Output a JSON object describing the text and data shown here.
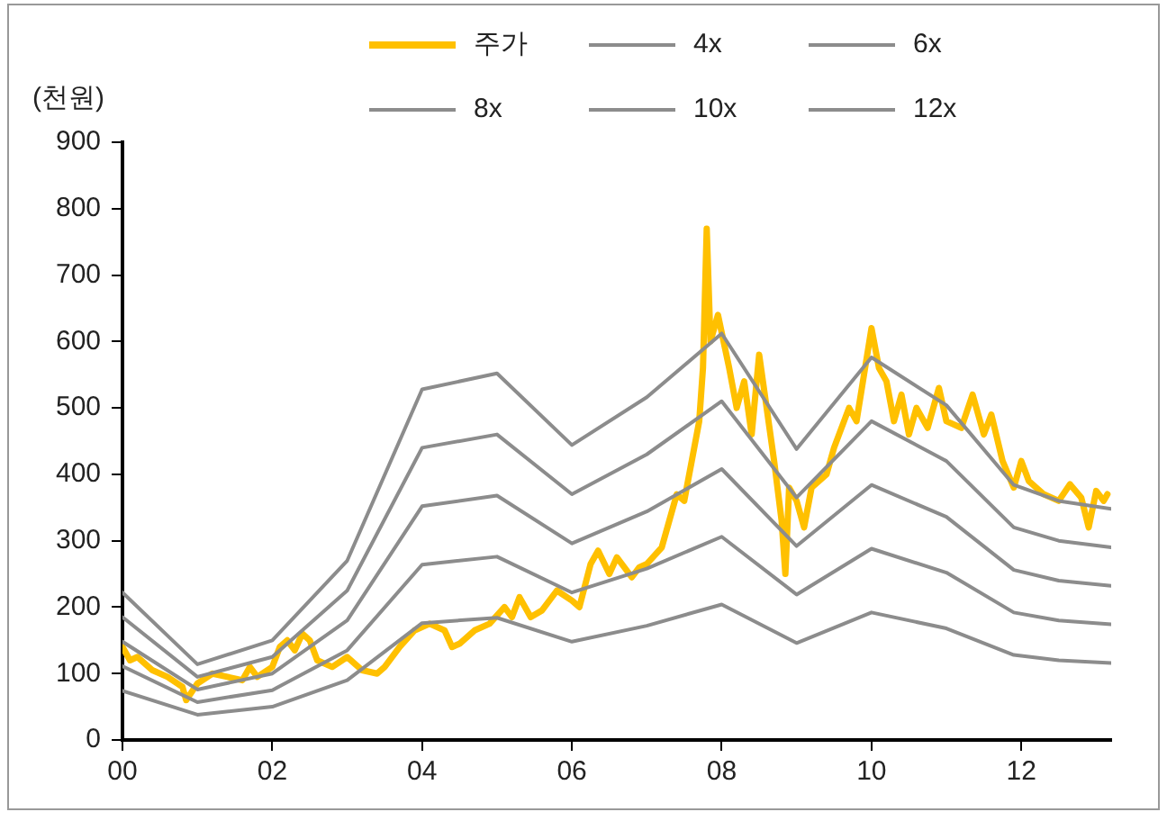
{
  "chart_data": {
    "type": "line",
    "ylabel": "(천원)",
    "legend": "top",
    "grid": false,
    "marker": "none",
    "line_style": "solid",
    "xlim": [
      2000,
      2013.2
    ],
    "xticks": [
      {
        "value": 2000,
        "label": "00"
      },
      {
        "value": 2002,
        "label": "02"
      },
      {
        "value": 2004,
        "label": "04"
      },
      {
        "value": 2006,
        "label": "06"
      },
      {
        "value": 2008,
        "label": "08"
      },
      {
        "value": 2010,
        "label": "10"
      },
      {
        "value": 2012,
        "label": "12"
      }
    ],
    "ylim": [
      0,
      900
    ],
    "yticks": [
      0,
      100,
      200,
      300,
      400,
      500,
      600,
      700,
      800,
      900
    ],
    "series": [
      {
        "name": "주가",
        "color": "#ffc000",
        "x": [
          2000,
          2000.1,
          2000.2,
          2000.4,
          2000.6,
          2000.8,
          2000.85,
          2001,
          2001.2,
          2001.4,
          2001.6,
          2001.7,
          2001.8,
          2002,
          2002.1,
          2002.2,
          2002.3,
          2002.4,
          2002.5,
          2002.6,
          2002.8,
          2003,
          2003.2,
          2003.4,
          2003.5,
          2003.7,
          2003.9,
          2004.1,
          2004.3,
          2004.4,
          2004.5,
          2004.7,
          2004.9,
          2005.1,
          2005.2,
          2005.3,
          2005.45,
          2005.6,
          2005.8,
          2006,
          2006.1,
          2006.25,
          2006.35,
          2006.5,
          2006.6,
          2006.8,
          2006.9,
          2007,
          2007.2,
          2007.3,
          2007.4,
          2007.5,
          2007.6,
          2007.7,
          2007.75,
          2007.8,
          2007.85,
          2007.95,
          2008.1,
          2008.2,
          2008.3,
          2008.4,
          2008.5,
          2008.6,
          2008.7,
          2008.8,
          2008.85,
          2008.9,
          2009,
          2009.1,
          2009.2,
          2009.4,
          2009.5,
          2009.7,
          2009.8,
          2009.9,
          2010,
          2010.1,
          2010.2,
          2010.3,
          2010.4,
          2010.5,
          2010.6,
          2010.75,
          2010.9,
          2011,
          2011.2,
          2011.35,
          2011.5,
          2011.6,
          2011.75,
          2011.9,
          2012,
          2012.1,
          2012.3,
          2012.5,
          2012.65,
          2012.8,
          2012.9,
          2013,
          2013.1,
          2013.15
        ],
        "values": [
          140,
          120,
          125,
          105,
          95,
          80,
          60,
          85,
          100,
          95,
          90,
          110,
          95,
          110,
          140,
          150,
          135,
          160,
          150,
          120,
          110,
          125,
          105,
          100,
          110,
          140,
          165,
          175,
          165,
          140,
          145,
          165,
          175,
          200,
          185,
          215,
          185,
          195,
          225,
          210,
          200,
          265,
          285,
          250,
          275,
          245,
          260,
          265,
          290,
          330,
          370,
          360,
          420,
          480,
          560,
          770,
          600,
          640,
          560,
          500,
          540,
          460,
          580,
          500,
          420,
          330,
          250,
          380,
          360,
          320,
          380,
          400,
          440,
          500,
          480,
          550,
          620,
          560,
          540,
          480,
          520,
          460,
          500,
          470,
          530,
          480,
          470,
          520,
          460,
          490,
          420,
          380,
          420,
          390,
          370,
          360,
          385,
          365,
          320,
          375,
          360,
          370
        ]
      },
      {
        "name": "4x",
        "color": "#8c8c8c",
        "x": [
          2000,
          2001,
          2002,
          2003,
          2004,
          2005,
          2006,
          2007,
          2008,
          2009,
          2010,
          2011,
          2011.9,
          2012.5,
          2013.2
        ],
        "values": [
          74,
          38,
          50,
          90,
          176,
          184,
          148,
          172,
          204,
          146,
          192,
          168,
          128,
          120,
          116
        ]
      },
      {
        "name": "6x",
        "color": "#8c8c8c",
        "x": [
          2000,
          2001,
          2002,
          2003,
          2004,
          2005,
          2006,
          2007,
          2008,
          2009,
          2010,
          2011,
          2011.9,
          2012.5,
          2013.2
        ],
        "values": [
          111,
          57,
          75,
          135,
          264,
          276,
          222,
          258,
          306,
          219,
          288,
          252,
          192,
          180,
          174
        ]
      },
      {
        "name": "8x",
        "color": "#8c8c8c",
        "x": [
          2000,
          2001,
          2002,
          2003,
          2004,
          2005,
          2006,
          2007,
          2008,
          2009,
          2010,
          2011,
          2011.9,
          2012.5,
          2013.2
        ],
        "values": [
          148,
          76,
          100,
          180,
          352,
          368,
          296,
          344,
          408,
          292,
          384,
          336,
          256,
          240,
          232
        ]
      },
      {
        "name": "10x",
        "color": "#8c8c8c",
        "x": [
          2000,
          2001,
          2002,
          2003,
          2004,
          2005,
          2006,
          2007,
          2008,
          2009,
          2010,
          2011,
          2011.9,
          2012.5,
          2013.2
        ],
        "values": [
          185,
          95,
          125,
          225,
          440,
          460,
          370,
          430,
          510,
          365,
          480,
          420,
          320,
          300,
          290
        ]
      },
      {
        "name": "12x",
        "color": "#8c8c8c",
        "x": [
          2000,
          2001,
          2002,
          2003,
          2004,
          2005,
          2006,
          2007,
          2008,
          2009,
          2010,
          2011,
          2011.9,
          2012.5,
          2013.2
        ],
        "values": [
          222,
          114,
          150,
          270,
          528,
          552,
          444,
          516,
          612,
          438,
          576,
          504,
          384,
          360,
          348
        ]
      }
    ]
  }
}
